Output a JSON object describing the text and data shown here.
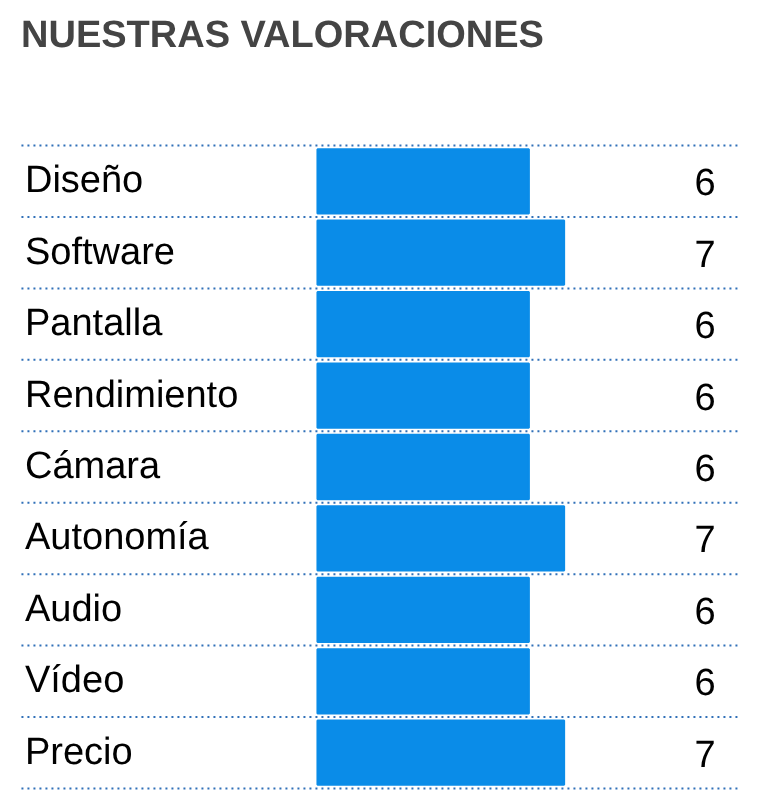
{
  "chart_data": {
    "type": "bar",
    "orientation": "horizontal",
    "title": "NUESTRAS VALORACIONES",
    "categories": [
      "Diseño",
      "Software",
      "Pantalla",
      "Rendimiento",
      "Cámara",
      "Autonomía",
      "Audio",
      "Vídeo",
      "Precio"
    ],
    "values": [
      6,
      7,
      6,
      6,
      6,
      7,
      6,
      6,
      7
    ],
    "color": "#0a8ce8",
    "data_labels": true,
    "grid": "y"
  }
}
